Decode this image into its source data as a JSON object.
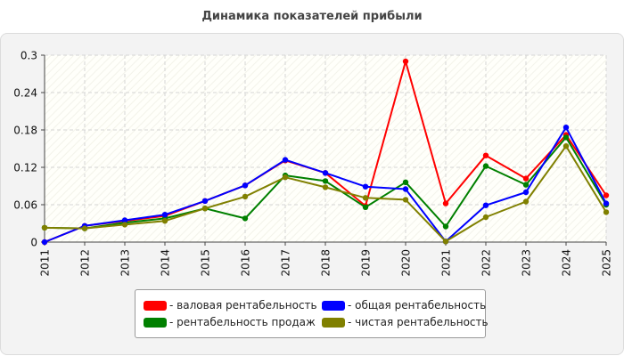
{
  "chart_data": {
    "type": "line",
    "title": "Динамика показателей прибыли",
    "xlabel": "",
    "ylabel": "",
    "categories": [
      "2011",
      "2012",
      "2013",
      "2014",
      "2015",
      "2016",
      "2017",
      "2018",
      "2019",
      "2020",
      "2021",
      "2022",
      "2023",
      "2024",
      "2025"
    ],
    "yticks": [
      "0",
      "0.06",
      "0.12",
      "0.18",
      "0.24",
      "0.3"
    ],
    "ylim": [
      0,
      0.3
    ],
    "grid": true,
    "legend_position": "bottom",
    "series": [
      {
        "name": "- валовая рентабельность",
        "color": "#ff0000",
        "values": [
          0,
          0.026,
          0.034,
          0.042,
          0.066,
          0.091,
          0.131,
          0.111,
          0.058,
          0.29,
          0.062,
          0.139,
          0.102,
          0.172,
          0.075
        ]
      },
      {
        "name": "- рентабельность продаж",
        "color": "#008000",
        "values": [
          0.023,
          0.022,
          0.031,
          0.038,
          0.054,
          0.038,
          0.107,
          0.098,
          0.056,
          0.096,
          0.025,
          0.122,
          0.092,
          0.168,
          0.06
        ]
      },
      {
        "name": "- общая рентабельность",
        "color": "#0000ff",
        "values": [
          0,
          0.026,
          0.035,
          0.044,
          0.066,
          0.091,
          0.132,
          0.111,
          0.089,
          0.085,
          0.001,
          0.059,
          0.08,
          0.184,
          0.062
        ]
      },
      {
        "name": "- чистая рентабельность",
        "color": "#808000",
        "values": [
          0.023,
          0.022,
          0.028,
          0.034,
          0.054,
          0.073,
          0.104,
          0.088,
          0.071,
          0.068,
          0.001,
          0.04,
          0.065,
          0.154,
          0.048
        ]
      }
    ]
  }
}
